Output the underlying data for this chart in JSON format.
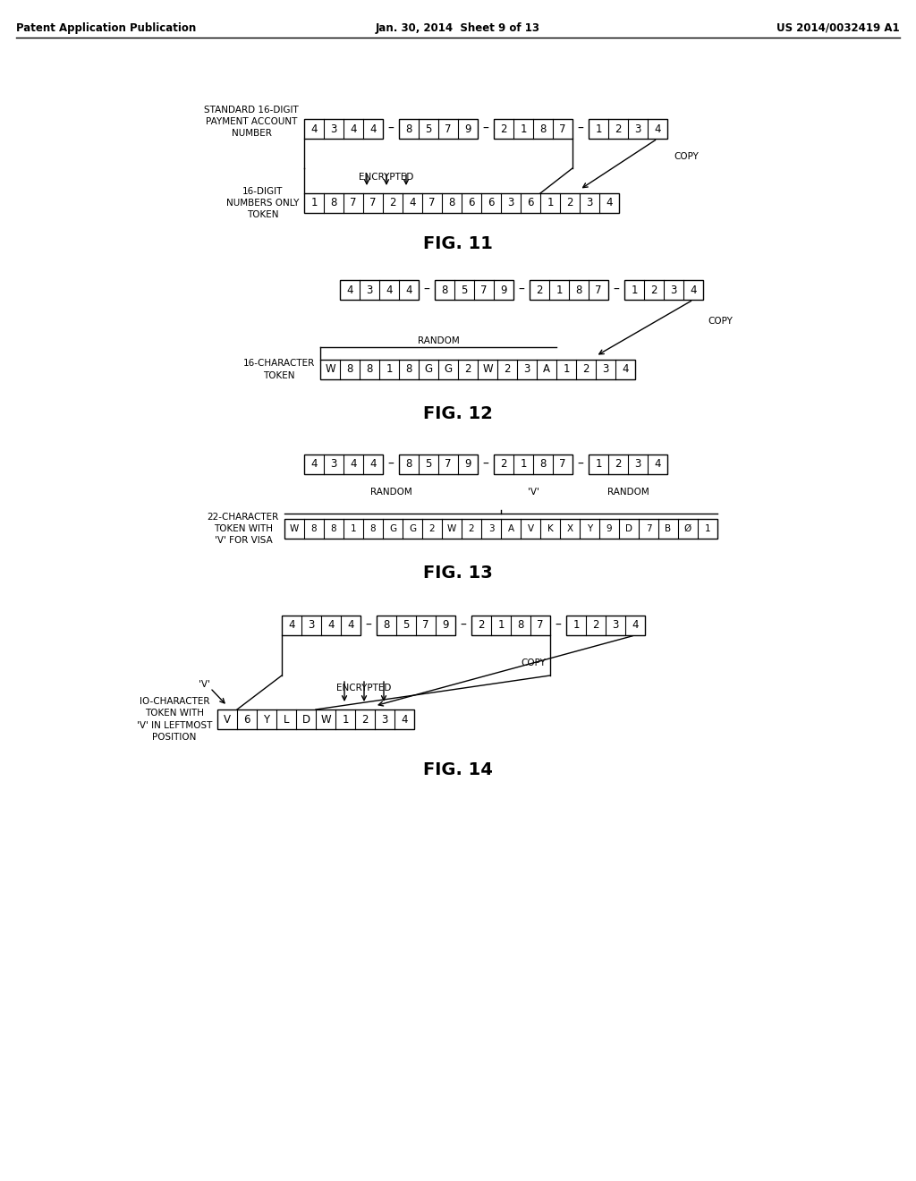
{
  "header_left": "Patent Application Publication",
  "header_mid": "Jan. 30, 2014  Sheet 9 of 13",
  "header_right": "US 2014/0032419 A1",
  "fig11": {
    "label": "FIG. 11",
    "top_label": "STANDARD 16-DIGIT\nPAYMENT ACCOUNT\nNUMBER",
    "bottom_label": "16-DIGIT\nNUMBERS ONLY\nTOKEN",
    "top_groups": [
      [
        "4",
        "3",
        "4",
        "4"
      ],
      [
        "8",
        "5",
        "7",
        "9"
      ],
      [
        "2",
        "1",
        "8",
        "7"
      ],
      [
        "1",
        "2",
        "3",
        "4"
      ]
    ],
    "bottom_cells": [
      "1",
      "8",
      "7",
      "7",
      "2",
      "4",
      "7",
      "8",
      "6",
      "6",
      "3",
      "6",
      "1",
      "2",
      "3",
      "4"
    ],
    "encrypted_label": "ENCRYPTED",
    "copy_label": "COPY"
  },
  "fig12": {
    "label": "FIG. 12",
    "bottom_label": "16-CHARACTER\nTOKEN",
    "top_groups": [
      [
        "4",
        "3",
        "4",
        "4"
      ],
      [
        "8",
        "5",
        "7",
        "9"
      ],
      [
        "2",
        "1",
        "8",
        "7"
      ],
      [
        "1",
        "2",
        "3",
        "4"
      ]
    ],
    "bottom_cells": [
      "W",
      "8",
      "8",
      "1",
      "8",
      "G",
      "G",
      "2",
      "W",
      "2",
      "3",
      "A",
      "1",
      "2",
      "3",
      "4"
    ],
    "random_label": "RANDOM",
    "copy_label": "COPY"
  },
  "fig13": {
    "label": "FIG. 13",
    "bottom_label": "22-CHARACTER\nTOKEN WITH\n'V' FOR VISA",
    "top_groups": [
      [
        "4",
        "3",
        "4",
        "4"
      ],
      [
        "8",
        "5",
        "7",
        "9"
      ],
      [
        "2",
        "1",
        "8",
        "7"
      ],
      [
        "1",
        "2",
        "3",
        "4"
      ]
    ],
    "bottom_cells": [
      "W",
      "8",
      "8",
      "1",
      "8",
      "G",
      "G",
      "2",
      "W",
      "2",
      "3",
      "A",
      "V",
      "K",
      "X",
      "Y",
      "9",
      "D",
      "7",
      "B",
      "Ø",
      "1"
    ],
    "random_label": "RANDOM",
    "v_label": "'V'",
    "random2_label": "RANDOM"
  },
  "fig14": {
    "label": "FIG. 14",
    "bottom_label": "IO-CHARACTER\nTOKEN WITH\n'V' IN LEFTMOST\nPOSITION",
    "top_groups": [
      [
        "4",
        "3",
        "4",
        "4"
      ],
      [
        "8",
        "5",
        "7",
        "9"
      ],
      [
        "2",
        "1",
        "8",
        "7"
      ],
      [
        "1",
        "2",
        "3",
        "4"
      ]
    ],
    "bottom_cells": [
      "V",
      "6",
      "Y",
      "L",
      "D",
      "W",
      "1",
      "2",
      "3",
      "4"
    ],
    "encrypted_label": "ENCRYPTED",
    "copy_label": "COPY",
    "v_label": "'V'"
  },
  "bg_color": "#ffffff",
  "line_color": "#000000",
  "text_color": "#000000"
}
